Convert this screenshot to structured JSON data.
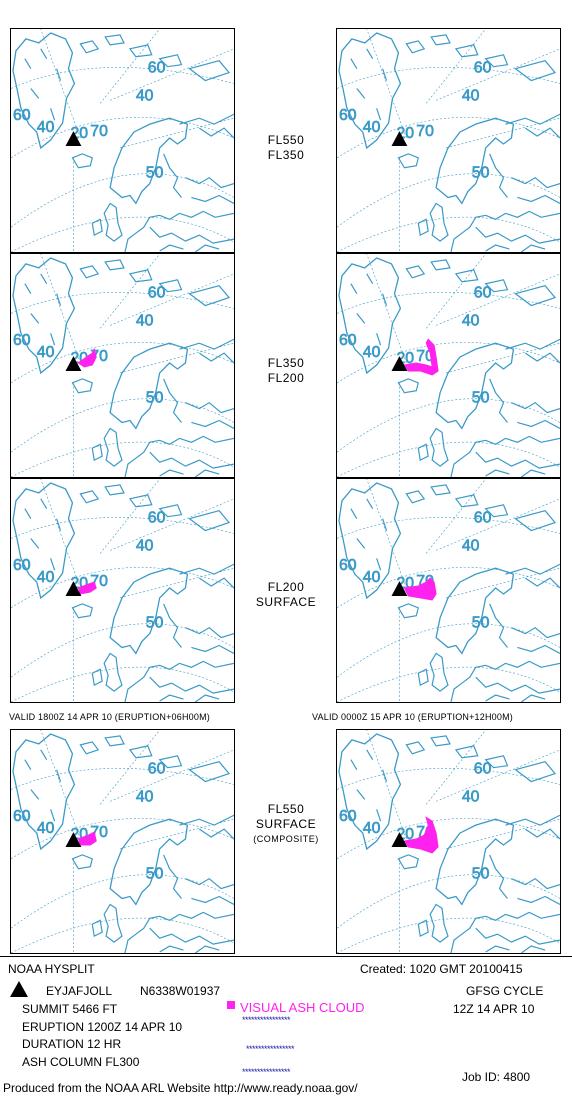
{
  "panels": [
    {
      "level": [
        "FL550",
        "FL350"
      ],
      "plume_left": "none",
      "plume_right": "none"
    },
    {
      "level": [
        "FL350",
        "FL200"
      ],
      "plume_left": "small",
      "plume_right": "tall"
    },
    {
      "level": [
        "FL200",
        "SURFACE"
      ],
      "plume_left": "small",
      "plume_right": "medium"
    }
  ],
  "valid_left": "VALID 1800Z 14 APR 10 (ERUPTION+06H00M)",
  "valid_right": "VALID 0000Z 15 APR 10 (ERUPTION+12H00M)",
  "composite": {
    "line1": "FL550",
    "line2": "SURFACE",
    "line3": "(COMPOSITE)"
  },
  "map_labels": {
    "lat60": "60",
    "lat40": "40",
    "lat20": "20",
    "lon70": "70",
    "lon50": "50",
    "lon60": "60",
    "lon40": "40"
  },
  "info": {
    "model": "NOAA HYSPLIT",
    "created": "Created: 1020 GMT 20100415",
    "volcano": "EYJAFJOLL",
    "coords": "N6338W01937",
    "summit": "SUMMIT  5466 FT",
    "eruption": "ERUPTION 1200Z 14 APR 10",
    "duration": "DURATION    12 HR",
    "ash_column": "ASH COLUMN FL300",
    "legend": "VISUAL ASH CLOUD",
    "cycle": "GFSG CYCLE",
    "cycle_time": "12Z 14 APR 10",
    "job": "Job ID: 4800",
    "produced": "Produced from the NOAA ARL Website http://www.ready.noaa.gov/",
    "stars": "****************"
  },
  "colors": {
    "map": "#3a9ac8",
    "ash": "#ff22ee",
    "stars": "#1a1aa6"
  }
}
